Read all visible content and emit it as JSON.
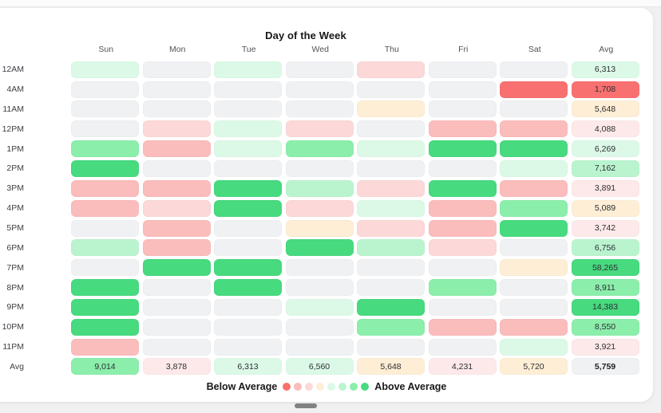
{
  "chart_data": {
    "type": "heatmap",
    "title": "Day of the Week",
    "columns": [
      "Sun",
      "Mon",
      "Tue",
      "Wed",
      "Thu",
      "Fri",
      "Sat",
      "Avg"
    ],
    "row_labels": [
      "12AM",
      "4AM",
      "11AM",
      "12PM",
      "1PM",
      "2PM",
      "3PM",
      "4PM",
      "5PM",
      "6PM",
      "7PM",
      "8PM",
      "9PM",
      "10PM",
      "11PM",
      "Avg"
    ],
    "palette": {
      "r4": "#f87070",
      "r3": "#fbbcbc",
      "r2": "#fcd8d8",
      "r1": "#fde9e9",
      "o1": "#fdeed5",
      "g1": "#dcf9e7",
      "g2": "#baf4cf",
      "g3": "#8beeab",
      "g4": "#47da7f",
      "gray": "#f0f1f3"
    },
    "rows": [
      {
        "label": "12AM",
        "cells": [
          {
            "c": "g1"
          },
          {
            "c": "gray"
          },
          {
            "c": "g1"
          },
          {
            "c": "gray"
          },
          {
            "c": "r2"
          },
          {
            "c": "gray"
          },
          {
            "c": "gray"
          },
          {
            "c": "g1",
            "v": "6,313"
          }
        ]
      },
      {
        "label": "4AM",
        "cells": [
          {
            "c": "gray"
          },
          {
            "c": "gray"
          },
          {
            "c": "gray"
          },
          {
            "c": "gray"
          },
          {
            "c": "gray"
          },
          {
            "c": "gray"
          },
          {
            "c": "r4"
          },
          {
            "c": "r4",
            "v": "1,708"
          }
        ]
      },
      {
        "label": "11AM",
        "cells": [
          {
            "c": "gray"
          },
          {
            "c": "gray"
          },
          {
            "c": "gray"
          },
          {
            "c": "gray"
          },
          {
            "c": "o1"
          },
          {
            "c": "gray"
          },
          {
            "c": "gray"
          },
          {
            "c": "o1",
            "v": "5,648"
          }
        ]
      },
      {
        "label": "12PM",
        "cells": [
          {
            "c": "gray"
          },
          {
            "c": "r2"
          },
          {
            "c": "g1"
          },
          {
            "c": "r2"
          },
          {
            "c": "gray"
          },
          {
            "c": "r3"
          },
          {
            "c": "r3"
          },
          {
            "c": "r1",
            "v": "4,088"
          }
        ]
      },
      {
        "label": "1PM",
        "cells": [
          {
            "c": "g3"
          },
          {
            "c": "r3"
          },
          {
            "c": "g1"
          },
          {
            "c": "g3"
          },
          {
            "c": "g1"
          },
          {
            "c": "g4"
          },
          {
            "c": "g4"
          },
          {
            "c": "g1",
            "v": "6,269"
          }
        ]
      },
      {
        "label": "2PM",
        "cells": [
          {
            "c": "g4"
          },
          {
            "c": "gray"
          },
          {
            "c": "gray"
          },
          {
            "c": "gray"
          },
          {
            "c": "gray"
          },
          {
            "c": "gray"
          },
          {
            "c": "g1"
          },
          {
            "c": "g2",
            "v": "7,162"
          }
        ]
      },
      {
        "label": "3PM",
        "cells": [
          {
            "c": "r3"
          },
          {
            "c": "r3"
          },
          {
            "c": "g4"
          },
          {
            "c": "g2"
          },
          {
            "c": "r2"
          },
          {
            "c": "g4"
          },
          {
            "c": "r3"
          },
          {
            "c": "r1",
            "v": "3,891"
          }
        ]
      },
      {
        "label": "4PM",
        "cells": [
          {
            "c": "r3"
          },
          {
            "c": "r2"
          },
          {
            "c": "g4"
          },
          {
            "c": "r2"
          },
          {
            "c": "g1"
          },
          {
            "c": "r3"
          },
          {
            "c": "g3"
          },
          {
            "c": "o1",
            "v": "5,089"
          }
        ]
      },
      {
        "label": "5PM",
        "cells": [
          {
            "c": "gray"
          },
          {
            "c": "r3"
          },
          {
            "c": "gray"
          },
          {
            "c": "o1"
          },
          {
            "c": "r2"
          },
          {
            "c": "r3"
          },
          {
            "c": "g4"
          },
          {
            "c": "r1",
            "v": "3,742"
          }
        ]
      },
      {
        "label": "6PM",
        "cells": [
          {
            "c": "g2"
          },
          {
            "c": "r3"
          },
          {
            "c": "gray"
          },
          {
            "c": "g4"
          },
          {
            "c": "g2"
          },
          {
            "c": "r2"
          },
          {
            "c": "gray"
          },
          {
            "c": "g2",
            "v": "6,756"
          }
        ]
      },
      {
        "label": "7PM",
        "cells": [
          {
            "c": "gray"
          },
          {
            "c": "g4"
          },
          {
            "c": "g4"
          },
          {
            "c": "gray"
          },
          {
            "c": "gray"
          },
          {
            "c": "gray"
          },
          {
            "c": "o1"
          },
          {
            "c": "g4",
            "v": "58,265"
          }
        ]
      },
      {
        "label": "8PM",
        "cells": [
          {
            "c": "g4"
          },
          {
            "c": "gray"
          },
          {
            "c": "g4"
          },
          {
            "c": "gray"
          },
          {
            "c": "gray"
          },
          {
            "c": "g3"
          },
          {
            "c": "gray"
          },
          {
            "c": "g3",
            "v": "8,911"
          }
        ]
      },
      {
        "label": "9PM",
        "cells": [
          {
            "c": "g4"
          },
          {
            "c": "gray"
          },
          {
            "c": "gray"
          },
          {
            "c": "g1"
          },
          {
            "c": "g4"
          },
          {
            "c": "gray"
          },
          {
            "c": "gray"
          },
          {
            "c": "g4",
            "v": "14,383"
          }
        ]
      },
      {
        "label": "10PM",
        "cells": [
          {
            "c": "g4"
          },
          {
            "c": "gray"
          },
          {
            "c": "gray"
          },
          {
            "c": "gray"
          },
          {
            "c": "g3"
          },
          {
            "c": "r3"
          },
          {
            "c": "r3"
          },
          {
            "c": "g3",
            "v": "8,550"
          }
        ]
      },
      {
        "label": "11PM",
        "cells": [
          {
            "c": "r3"
          },
          {
            "c": "gray"
          },
          {
            "c": "gray"
          },
          {
            "c": "gray"
          },
          {
            "c": "gray"
          },
          {
            "c": "gray"
          },
          {
            "c": "g1"
          },
          {
            "c": "r1",
            "v": "3,921"
          }
        ]
      },
      {
        "label": "Avg",
        "cells": [
          {
            "c": "g3",
            "v": "9,014"
          },
          {
            "c": "r1",
            "v": "3,878"
          },
          {
            "c": "g1",
            "v": "6,313"
          },
          {
            "c": "g1",
            "v": "6,560"
          },
          {
            "c": "o1",
            "v": "5,648"
          },
          {
            "c": "r1",
            "v": "4,231"
          },
          {
            "c": "o1",
            "v": "5,720"
          },
          {
            "c": "gray",
            "v": "5,759",
            "b": true
          }
        ]
      }
    ],
    "legend": {
      "below_label": "Below Average",
      "above_label": "Above Average",
      "dot_color_keys": [
        "r4",
        "r3",
        "r2",
        "o1",
        "g1",
        "g2",
        "g3",
        "g4"
      ]
    }
  }
}
